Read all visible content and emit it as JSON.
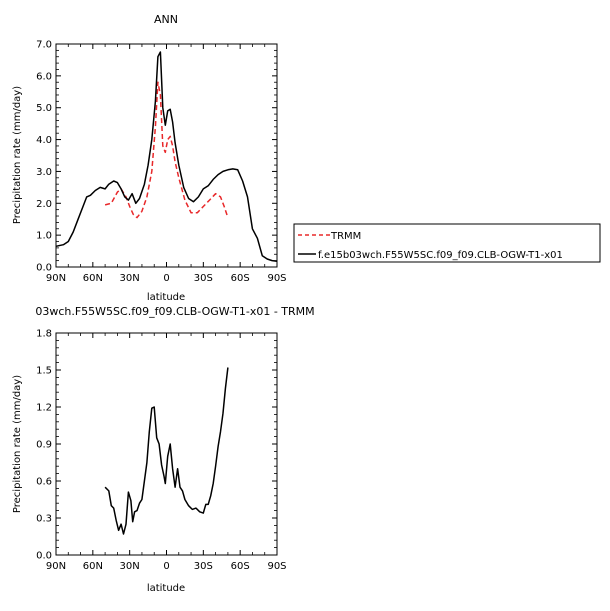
{
  "chart_data": [
    {
      "type": "line",
      "title": "ANN",
      "xlabel": "latitude",
      "ylabel": "Precipitation rate (mm/day)",
      "x_ticks": [
        "90N",
        "60N",
        "30N",
        "0",
        "30S",
        "60S",
        "90S"
      ],
      "y_ticks": [
        "0.0",
        "1.0",
        "2.0",
        "3.0",
        "4.0",
        "5.0",
        "6.0",
        "7.0"
      ],
      "ylim": [
        0,
        7
      ],
      "xlim": [
        90,
        -90
      ],
      "legend_position": "right",
      "series": [
        {
          "name": "TRMM",
          "color": "#e8282a",
          "dash": true,
          "x": [
            50,
            45,
            40,
            37,
            33,
            30,
            27,
            24,
            20,
            16,
            12,
            9,
            7,
            5,
            3,
            1,
            -1,
            -3,
            -5,
            -7,
            -10,
            -15,
            -20,
            -25,
            -30,
            -35,
            -40,
            -44,
            -47,
            -50
          ],
          "y": [
            1.95,
            2.0,
            2.35,
            2.45,
            2.2,
            1.9,
            1.65,
            1.55,
            1.75,
            2.2,
            3.0,
            4.4,
            5.8,
            5.4,
            3.8,
            3.6,
            4.0,
            4.1,
            3.8,
            3.3,
            2.8,
            2.1,
            1.7,
            1.7,
            1.9,
            2.1,
            2.3,
            2.2,
            1.9,
            1.55
          ]
        },
        {
          "name": "f.e15b03wch.F55W5SC.f09_f09.CLB-OGW-T1-x01",
          "color": "#000000",
          "dash": false,
          "x": [
            90,
            84,
            80,
            76,
            72,
            68,
            65,
            62,
            58,
            54,
            50,
            47,
            43,
            40,
            37,
            34,
            31,
            28,
            25,
            22,
            18,
            15,
            12,
            9,
            7,
            5,
            3,
            1,
            -1,
            -3,
            -5,
            -7,
            -10,
            -14,
            -18,
            -22,
            -26,
            -30,
            -34,
            -38,
            -42,
            -46,
            -50,
            -54,
            -58,
            -62,
            -66,
            -70,
            -74,
            -78,
            -82,
            -86,
            -90
          ],
          "y": [
            0.65,
            0.7,
            0.8,
            1.1,
            1.5,
            1.9,
            2.2,
            2.25,
            2.4,
            2.5,
            2.45,
            2.6,
            2.7,
            2.65,
            2.45,
            2.2,
            2.1,
            2.3,
            2.0,
            2.15,
            2.6,
            3.2,
            4.0,
            5.2,
            6.6,
            6.75,
            5.0,
            4.45,
            4.9,
            4.95,
            4.55,
            3.9,
            3.2,
            2.5,
            2.15,
            2.05,
            2.2,
            2.45,
            2.55,
            2.75,
            2.9,
            3.0,
            3.05,
            3.08,
            3.05,
            2.7,
            2.2,
            1.2,
            0.9,
            0.35,
            0.25,
            0.2,
            0.18
          ]
        }
      ]
    },
    {
      "type": "line",
      "title": "03wch.F55W5SC.f09_f09.CLB-OGW-T1-x01 - TRMM",
      "xlabel": "latitude",
      "ylabel": "Precipitation rate (mm/day)",
      "x_ticks": [
        "90N",
        "60N",
        "30N",
        "0",
        "30S",
        "60S",
        "90S"
      ],
      "y_ticks": [
        "0.0",
        "0.3",
        "0.6",
        "0.9",
        "1.2",
        "1.5",
        "1.8"
      ],
      "ylim": [
        0,
        1.8
      ],
      "xlim": [
        90,
        -90
      ],
      "series": [
        {
          "color": "#000000",
          "x": [
            50,
            47,
            45,
            43,
            41,
            39,
            37,
            35,
            33,
            31,
            29,
            27.5,
            26,
            24,
            22,
            20,
            18,
            16,
            14,
            12,
            10,
            8,
            6,
            4,
            2,
            1,
            -1,
            -3,
            -5,
            -7,
            -9,
            -11,
            -13,
            -15,
            -18,
            -21,
            -24,
            -27,
            -30,
            -32,
            -34,
            -36,
            -38,
            -40,
            -42,
            -44,
            -46,
            -48,
            -50
          ],
          "y": [
            0.55,
            0.52,
            0.4,
            0.38,
            0.28,
            0.2,
            0.25,
            0.17,
            0.25,
            0.51,
            0.44,
            0.27,
            0.35,
            0.36,
            0.42,
            0.45,
            0.6,
            0.75,
            1.0,
            1.19,
            1.2,
            0.95,
            0.9,
            0.73,
            0.64,
            0.58,
            0.8,
            0.9,
            0.7,
            0.55,
            0.7,
            0.55,
            0.52,
            0.45,
            0.4,
            0.37,
            0.38,
            0.35,
            0.34,
            0.41,
            0.41,
            0.48,
            0.58,
            0.72,
            0.88,
            1.0,
            1.15,
            1.35,
            1.52
          ]
        }
      ]
    }
  ]
}
